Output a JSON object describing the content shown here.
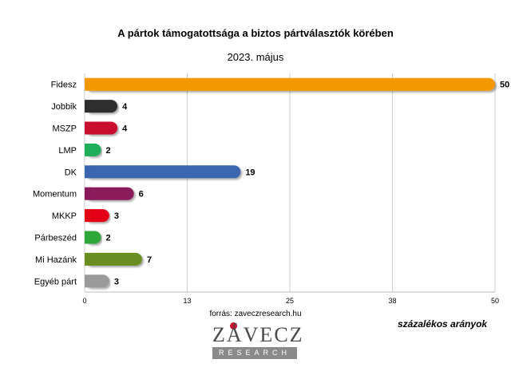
{
  "chart_data": {
    "type": "bar",
    "orientation": "horizontal",
    "title": "A pártok támogatottsága a biztos pártválasztók körében",
    "subtitle": "2023. május",
    "categories": [
      "Fidesz",
      "Jobbik",
      "MSZP",
      "LMP",
      "DK",
      "Momentum",
      "MKKP",
      "Párbeszéd",
      "Mi Hazánk",
      "Egyéb párt"
    ],
    "values": [
      50,
      4,
      4,
      2,
      19,
      6,
      3,
      2,
      7,
      3
    ],
    "colors": [
      "#f39800",
      "#2e2e2e",
      "#c8102e",
      "#1fae5a",
      "#3a66b0",
      "#8b1a5c",
      "#e30613",
      "#2fa83a",
      "#6b8e23",
      "#9a9a9a"
    ],
    "xlim": [
      0,
      50
    ],
    "xticks": [
      "0",
      "13",
      "25",
      "38",
      "50"
    ],
    "grid": true,
    "unit_label": "százalékos arányok"
  },
  "source": "forrás: zaveczresearch.hu",
  "logo": {
    "word": "ZÁVECZ",
    "sub": "RESEARCH"
  }
}
